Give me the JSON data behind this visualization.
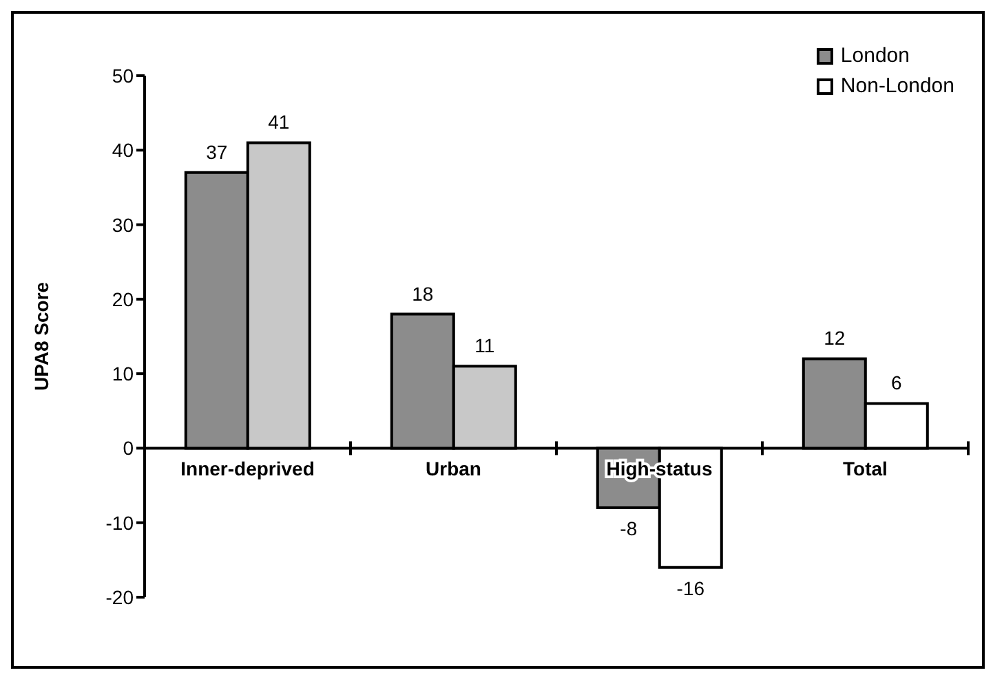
{
  "chart_data": {
    "type": "bar",
    "ylabel": "UPA8 Score",
    "categories": [
      "Inner-deprived",
      "Urban",
      "High-status",
      "Total"
    ],
    "series": [
      {
        "name": "London",
        "color": "#8c8c8c",
        "values": [
          37,
          18,
          -8,
          12
        ]
      },
      {
        "name": "Non-London",
        "color": "#ffffff",
        "colors": [
          "#c8c8c8",
          "#c8c8c8",
          "#ffffff",
          "#ffffff"
        ],
        "values": [
          41,
          11,
          -16,
          6
        ]
      }
    ],
    "ylim": [
      -20,
      50
    ],
    "yticks": [
      -20,
      -10,
      0,
      10,
      20,
      30,
      40,
      50
    ],
    "data_labels": true,
    "legend": "top right",
    "grid": false
  }
}
